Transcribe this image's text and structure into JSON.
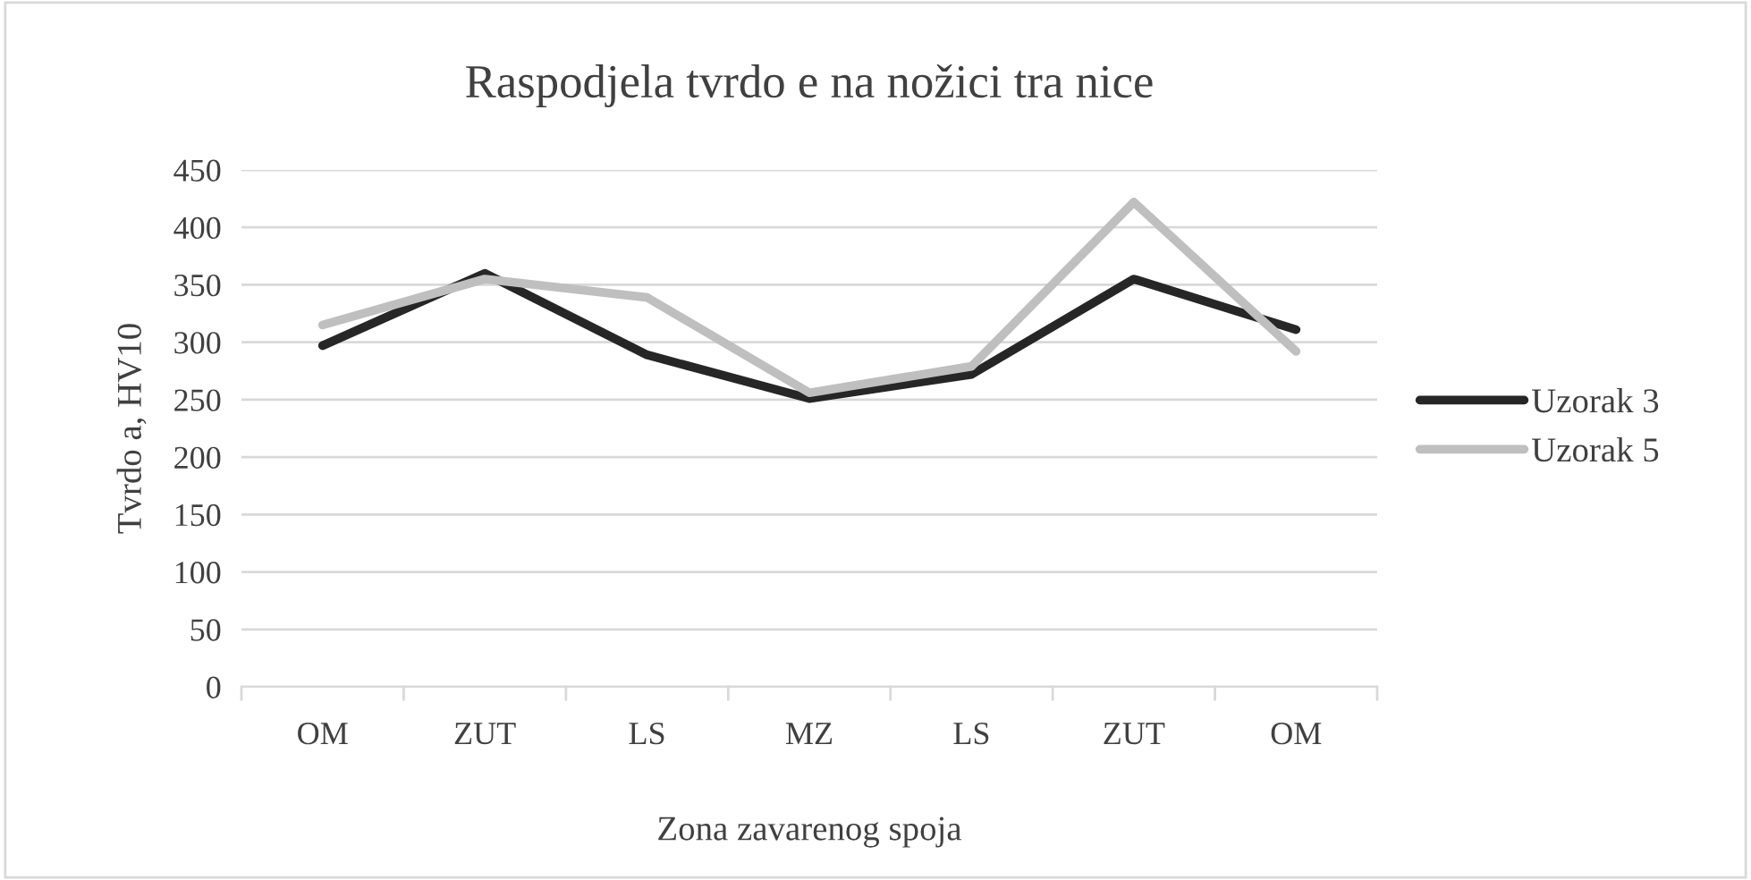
{
  "chart_data": {
    "type": "line",
    "title": "Raspodjela tvrdo e na nožici tra nice",
    "xlabel": "Zona zavarenog spoja",
    "ylabel": "Tvrdo a, HV10",
    "categories": [
      "OM",
      "ZUT",
      "LS",
      "MZ",
      "LS",
      "ZUT",
      "OM"
    ],
    "series": [
      {
        "name": "Uzorak 3",
        "color": "#262626",
        "values": [
          297,
          360,
          289,
          251,
          272,
          355,
          311
        ]
      },
      {
        "name": "Uzorak 5",
        "color": "#bfbfbf",
        "values": [
          315,
          355,
          339,
          256,
          279,
          422,
          292
        ]
      }
    ],
    "ylim": [
      0,
      450
    ],
    "yticks": [
      0,
      50,
      100,
      150,
      200,
      250,
      300,
      350,
      400,
      450
    ],
    "grid": "y",
    "legend": "right",
    "marker": "none",
    "line_style": "solid"
  }
}
